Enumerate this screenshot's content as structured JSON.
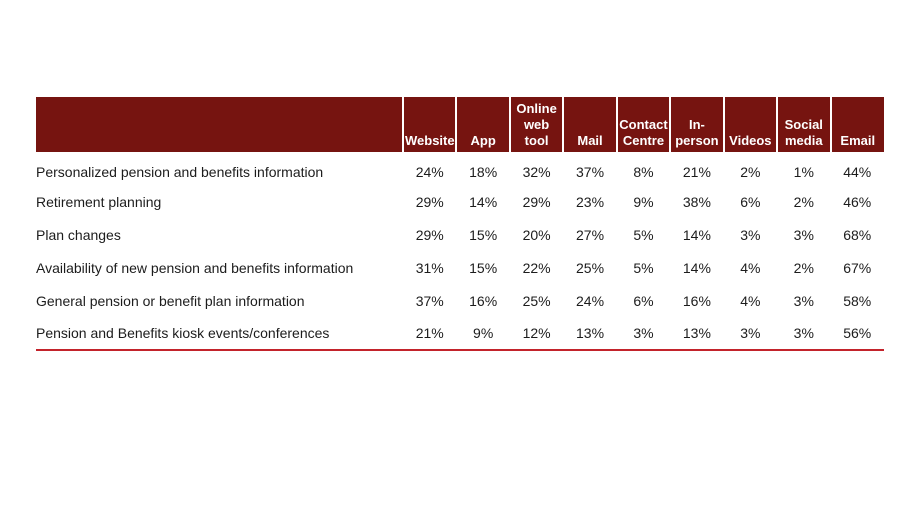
{
  "colors": {
    "header_bg": "#761410",
    "header_text": "#ffffff",
    "separator": "#ffffff",
    "underline": "#c3232b",
    "body_text": "#1c1c1c",
    "page_bg": "#ffffff"
  },
  "chart_data": {
    "type": "table",
    "title": "",
    "row_header_label": "",
    "columns": [
      "Website",
      "App",
      "Online web tool",
      "Mail",
      "Contact Centre",
      "In-person",
      "Videos",
      "Social media",
      "Email"
    ],
    "rows": [
      {
        "label": "Personalized pension and benefits information",
        "values": [
          "24%",
          "18%",
          "32%",
          "37%",
          "8%",
          "21%",
          "2%",
          "1%",
          "44%"
        ]
      },
      {
        "label": "Retirement planning",
        "values": [
          "29%",
          "14%",
          "29%",
          "23%",
          "9%",
          "38%",
          "6%",
          "2%",
          "46%"
        ]
      },
      {
        "label": "Plan changes",
        "values": [
          "29%",
          "15%",
          "20%",
          "27%",
          "5%",
          "14%",
          "3%",
          "3%",
          "68%"
        ]
      },
      {
        "label": "Availability of new pension and benefits information",
        "values": [
          "31%",
          "15%",
          "22%",
          "25%",
          "5%",
          "14%",
          "4%",
          "2%",
          "67%"
        ]
      },
      {
        "label": "General pension or benefit plan information",
        "values": [
          "37%",
          "16%",
          "25%",
          "24%",
          "6%",
          "16%",
          "4%",
          "3%",
          "58%"
        ]
      },
      {
        "label": "Pension and Benefits kiosk events/conferences",
        "values": [
          "21%",
          "9%",
          "12%",
          "13%",
          "3%",
          "13%",
          "3%",
          "3%",
          "56%"
        ]
      }
    ]
  }
}
